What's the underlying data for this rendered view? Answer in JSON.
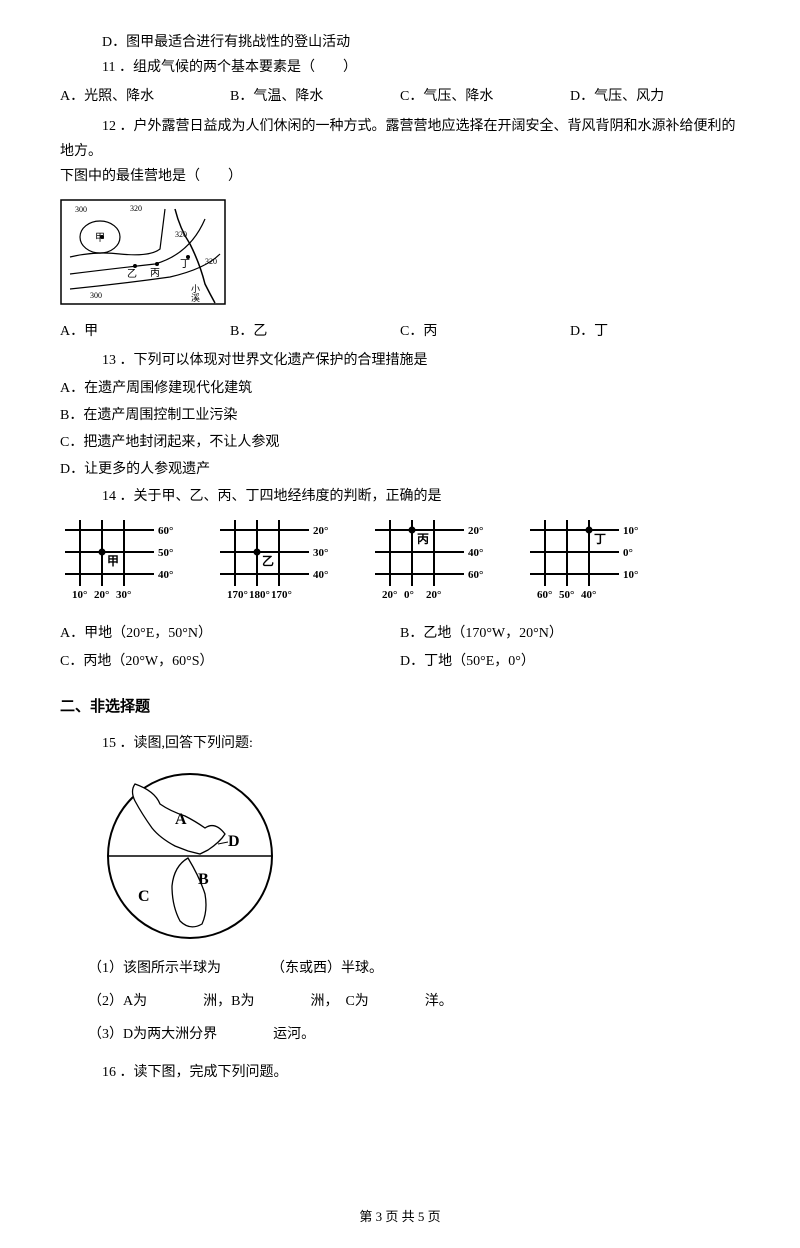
{
  "q10d": "D．图甲最适合进行有挑战性的登山活动",
  "q11": {
    "stem": "11 ．组成气候的两个基本要素是（　　）",
    "a": "A．光照、降水",
    "b": "B．气温、降水",
    "c": "C．气压、降水",
    "d": "D．气压、风力"
  },
  "q12": {
    "stem": "12 ．户外露营日益成为人们休闲的一种方式。露营营地应选择在开阔安全、背风背阴和水源补给便利的地方。",
    "stem2": "下图中的最佳营地是（　　）",
    "a": "A．甲",
    "b": "B．乙",
    "c": "C．丙",
    "d": "D．丁",
    "contour_labels": [
      "甲",
      "乙",
      "丙",
      "丁",
      "小溪"
    ],
    "contour_vals": [
      "300",
      "320",
      "320",
      "320",
      "300"
    ]
  },
  "q13": {
    "stem": "13 ．下列可以体现对世界文化遗产保护的合理措施是",
    "a": "A．在遗产周围修建现代化建筑",
    "b": "B．在遗产周围控制工业污染",
    "c": "C．把遗产地封闭起来，不让人参观",
    "d": "D．让更多的人参观遗产"
  },
  "q14": {
    "stem": "14 ．关于甲、乙、丙、丁四地经纬度的判断，正确的是",
    "a": "A．甲地（20°E，50°N）",
    "b": "B．乙地（170°W，20°N）",
    "c": "C．丙地（20°W，60°S）",
    "d": "D．丁地（50°E，0°）",
    "grids": [
      {
        "name": "甲",
        "right": [
          "60°",
          "50°",
          "40°"
        ],
        "bottom": [
          "10°",
          "20°",
          "30°"
        ],
        "dot": {
          "col": 1,
          "row": 1
        }
      },
      {
        "name": "乙",
        "right": [
          "20°",
          "30°",
          "40°"
        ],
        "bottom": [
          "170°",
          "180°",
          "170°"
        ],
        "dot": {
          "col": 1,
          "row": 1
        }
      },
      {
        "name": "丙",
        "right": [
          "20°",
          "40°",
          "60°"
        ],
        "bottom": [
          "20°",
          "0°",
          "20°"
        ],
        "dot": {
          "col": 1,
          "row": 0
        }
      },
      {
        "name": "丁",
        "right": [
          "10°",
          "0°",
          "10°"
        ],
        "bottom": [
          "60°",
          "50°",
          "40°"
        ],
        "dot": {
          "col": 2,
          "row": 0
        }
      }
    ]
  },
  "section2": "二、非选择题",
  "q15": {
    "stem": "15 ．读图,回答下列问题:",
    "labels": [
      "A",
      "B",
      "C",
      "D"
    ],
    "p1a": "（1）该图所示半球为",
    "p1b": "（东或西）半球。",
    "p2": "（2）A为　　　　洲，B为　　　　洲，　C为　　　　洋。",
    "p3": "（3）D为两大洲分界　　　　运河。"
  },
  "q16": {
    "stem": "16 ．读下图，完成下列问题。"
  },
  "footer": "第 3 页 共 5 页"
}
